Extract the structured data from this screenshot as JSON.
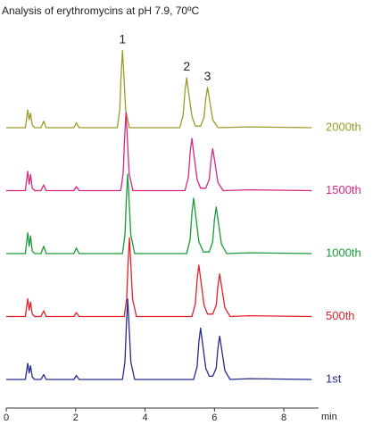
{
  "chart_data": {
    "type": "line",
    "title": "Analysis of erythromycins at pH 7.9, 70ºC",
    "x_label": "min",
    "xlim": [
      0,
      9
    ],
    "xticks": [
      0,
      2,
      4,
      6,
      8
    ],
    "ylim": [
      0,
      100
    ],
    "annotations": [
      {
        "text": "1",
        "x": 3.35,
        "y": 96
      },
      {
        "text": "2",
        "x": 5.2,
        "y": 62
      },
      {
        "text": "3",
        "x": 5.8,
        "y": 50
      }
    ],
    "series": [
      {
        "name": "2000th",
        "color": "#9b9a2c",
        "x": [
          0,
          0.55,
          0.62,
          0.66,
          0.7,
          0.75,
          0.82,
          1.0,
          1.08,
          1.15,
          1.3,
          1.95,
          2.02,
          2.1,
          2.5,
          3.2,
          3.27,
          3.31,
          3.35,
          3.39,
          3.44,
          3.55,
          5.0,
          5.1,
          5.15,
          5.2,
          5.26,
          5.35,
          5.45,
          5.6,
          5.7,
          5.75,
          5.8,
          5.86,
          5.95,
          6.1,
          7.0,
          8.8
        ],
        "values": [
          0,
          0,
          22,
          10,
          18,
          3,
          0,
          0,
          8,
          0,
          0,
          0,
          6,
          0,
          0,
          0,
          22,
          65,
          96,
          65,
          22,
          0,
          0,
          16,
          45,
          62,
          42,
          14,
          2,
          2,
          13,
          36,
          50,
          34,
          10,
          0,
          1,
          0
        ]
      },
      {
        "name": "1500th",
        "color": "#d6287f",
        "x": [
          0,
          0.55,
          0.62,
          0.66,
          0.7,
          0.75,
          0.82,
          1.0,
          1.08,
          1.15,
          1.3,
          1.95,
          2.02,
          2.1,
          2.5,
          3.3,
          3.37,
          3.41,
          3.45,
          3.49,
          3.54,
          3.65,
          5.15,
          5.25,
          5.3,
          5.35,
          5.41,
          5.5,
          5.6,
          5.75,
          5.85,
          5.9,
          5.95,
          6.01,
          6.1,
          6.25,
          7.0,
          8.8
        ],
        "values": [
          0,
          0,
          24,
          8,
          20,
          3,
          0,
          0,
          7,
          0,
          0,
          0,
          5,
          0,
          0,
          0,
          22,
          65,
          97,
          65,
          22,
          0,
          0,
          17,
          48,
          65,
          44,
          14,
          3,
          3,
          14,
          38,
          52,
          36,
          10,
          0,
          1,
          0
        ]
      },
      {
        "name": "1000th",
        "color": "#1a9a3a",
        "x": [
          0,
          0.55,
          0.62,
          0.66,
          0.7,
          0.75,
          0.82,
          1.0,
          1.08,
          1.15,
          1.3,
          1.95,
          2.02,
          2.1,
          2.5,
          3.35,
          3.42,
          3.46,
          3.5,
          3.54,
          3.59,
          3.7,
          5.2,
          5.3,
          5.35,
          5.4,
          5.46,
          5.55,
          5.68,
          5.85,
          5.95,
          6.0,
          6.05,
          6.11,
          6.2,
          6.35,
          7.0,
          8.8
        ],
        "values": [
          0,
          0,
          26,
          9,
          22,
          3,
          0,
          0,
          9,
          0,
          0,
          0,
          7,
          0,
          0,
          0,
          23,
          66,
          99,
          66,
          23,
          0,
          0,
          18,
          50,
          69,
          47,
          15,
          2,
          2,
          15,
          42,
          58,
          40,
          12,
          0,
          1,
          0
        ]
      },
      {
        "name": "500th",
        "color": "#e0202a",
        "x": [
          0,
          0.55,
          0.62,
          0.66,
          0.7,
          0.75,
          0.82,
          1.0,
          1.08,
          1.15,
          1.3,
          1.95,
          2.02,
          2.1,
          2.5,
          3.4,
          3.47,
          3.51,
          3.55,
          3.59,
          3.64,
          3.75,
          5.35,
          5.45,
          5.5,
          5.55,
          5.61,
          5.7,
          5.8,
          5.95,
          6.05,
          6.1,
          6.15,
          6.21,
          6.3,
          6.45,
          7.0,
          8.8
        ],
        "values": [
          0,
          0,
          22,
          8,
          18,
          3,
          0,
          0,
          7,
          0,
          0,
          0,
          5,
          0,
          0,
          0,
          22,
          65,
          98,
          65,
          22,
          0,
          0,
          16,
          46,
          64,
          44,
          14,
          3,
          3,
          14,
          38,
          53,
          36,
          11,
          0,
          1,
          0
        ]
      },
      {
        "name": "1st",
        "color": "#262a8c",
        "x": [
          0,
          0.55,
          0.62,
          0.66,
          0.7,
          0.75,
          0.82,
          1.0,
          1.08,
          1.15,
          1.3,
          1.95,
          2.02,
          2.1,
          2.5,
          3.35,
          3.42,
          3.46,
          3.5,
          3.54,
          3.59,
          3.7,
          5.4,
          5.5,
          5.55,
          5.6,
          5.66,
          5.75,
          5.85,
          5.95,
          6.05,
          6.1,
          6.15,
          6.21,
          6.3,
          6.45,
          7.0,
          8.8
        ],
        "values": [
          0,
          0,
          20,
          8,
          17,
          3,
          0,
          0,
          6,
          0,
          0,
          0,
          5,
          0,
          0,
          0,
          22,
          66,
          100,
          66,
          22,
          0,
          0,
          16,
          46,
          64,
          44,
          14,
          4,
          4,
          14,
          39,
          54,
          37,
          11,
          0,
          1,
          0
        ]
      }
    ]
  }
}
